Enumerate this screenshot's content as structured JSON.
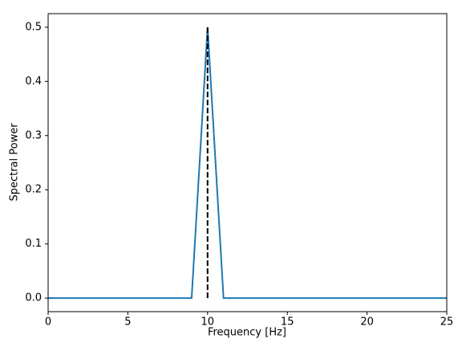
{
  "chart_data": {
    "type": "line",
    "x_label": "Frequency [Hz]",
    "y_label": "Spectral Power",
    "series": [
      {
        "x": [
          0,
          9,
          10,
          11,
          25
        ],
        "values": [
          0,
          0,
          0.5,
          0,
          0
        ],
        "color": "#1f77b4",
        "linestyle": "solid"
      },
      {
        "x": [
          10,
          10
        ],
        "values": [
          0,
          0.5
        ],
        "color": "#000000",
        "linestyle": "dashed"
      }
    ],
    "xlim": [
      0,
      25
    ],
    "xticks": [
      0,
      5,
      10,
      15,
      20,
      25
    ],
    "ylim": [
      -0.025,
      0.525
    ],
    "yticks": [
      {
        "value": 0,
        "label": "0.0"
      },
      0.1,
      0.2,
      0.3,
      0.4,
      0.5
    ],
    "grid": false
  }
}
